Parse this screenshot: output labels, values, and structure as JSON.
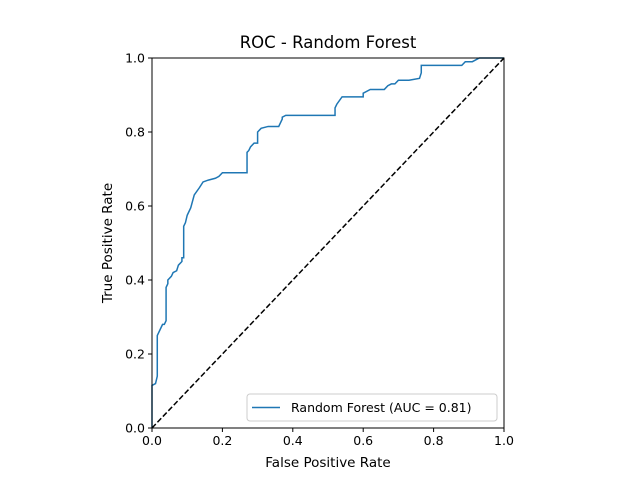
{
  "chart_data": {
    "type": "line",
    "title": "ROC - Random Forest",
    "xlabel": "False Positive Rate",
    "ylabel": "True Positive Rate",
    "xlim": [
      0,
      1
    ],
    "ylim": [
      0,
      1
    ],
    "xticks": [
      "0.0",
      "0.2",
      "0.4",
      "0.6",
      "0.8",
      "1.0"
    ],
    "yticks": [
      "0.0",
      "0.2",
      "0.4",
      "0.6",
      "0.8",
      "1.0"
    ],
    "grid": false,
    "legend_position": "lower-right",
    "series": [
      {
        "name": "Random Forest (AUC = 0.81)",
        "color": "#1f77b4",
        "style": "solid",
        "x": [
          0,
          0,
          0.01,
          0.015,
          0.015,
          0.03,
          0.035,
          0.04,
          0.04,
          0.045,
          0.045,
          0.055,
          0.06,
          0.07,
          0.075,
          0.085,
          0.085,
          0.09,
          0.09,
          0.095,
          0.1,
          0.11,
          0.12,
          0.135,
          0.145,
          0.16,
          0.18,
          0.19,
          0.2,
          0.27,
          0.27,
          0.275,
          0.28,
          0.29,
          0.3,
          0.3,
          0.31,
          0.33,
          0.36,
          0.37,
          0.37,
          0.38,
          0.52,
          0.52,
          0.525,
          0.54,
          0.6,
          0.6,
          0.62,
          0.66,
          0.67,
          0.68,
          0.69,
          0.7,
          0.73,
          0.76,
          0.765,
          0.765,
          0.88,
          0.89,
          0.91,
          0.93,
          0.95,
          1.0
        ],
        "y": [
          0,
          0.115,
          0.12,
          0.14,
          0.25,
          0.28,
          0.28,
          0.29,
          0.38,
          0.39,
          0.4,
          0.41,
          0.42,
          0.425,
          0.44,
          0.45,
          0.46,
          0.46,
          0.545,
          0.555,
          0.575,
          0.595,
          0.63,
          0.65,
          0.665,
          0.67,
          0.675,
          0.68,
          0.69,
          0.69,
          0.745,
          0.75,
          0.76,
          0.77,
          0.77,
          0.8,
          0.81,
          0.815,
          0.815,
          0.835,
          0.84,
          0.845,
          0.845,
          0.865,
          0.875,
          0.895,
          0.895,
          0.905,
          0.915,
          0.915,
          0.925,
          0.93,
          0.93,
          0.94,
          0.94,
          0.945,
          0.96,
          0.98,
          0.98,
          0.99,
          0.99,
          1.0,
          1.0,
          1.0
        ]
      },
      {
        "name": "",
        "color": "#000000",
        "style": "dashed",
        "x": [
          0,
          1
        ],
        "y": [
          0,
          1
        ]
      }
    ]
  }
}
